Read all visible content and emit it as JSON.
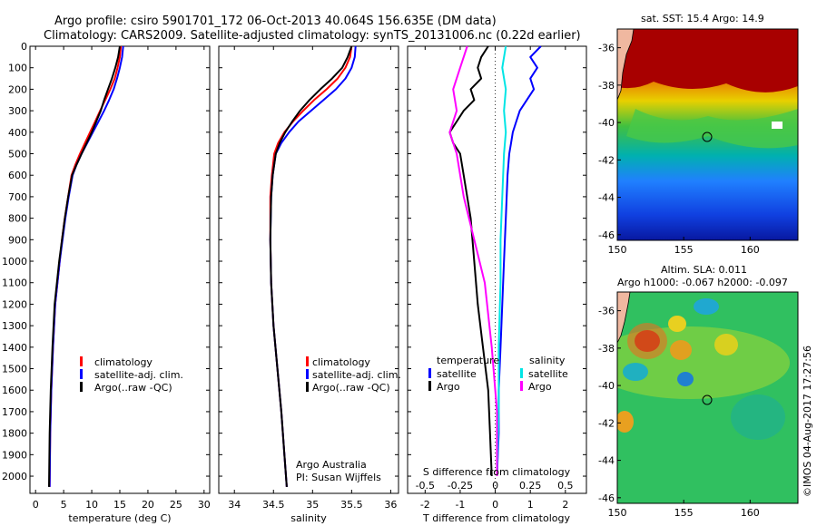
{
  "title": {
    "line1": "Argo profile: csiro 5901701_172 06-Oct-2013 40.064S 156.635E (DM data)",
    "line2": "Climatology: CARS2009. Satellite-adjusted climatology: synTS_20131006.nc (0.22d earlier)"
  },
  "colors": {
    "climatology": "#ff0000",
    "satellite": "#0000ff",
    "argo": "#000000",
    "s_satellite": "#00e5e5",
    "s_argo": "#ff00ff"
  },
  "panels": {
    "temperature": {
      "xlabel": "temperature (deg C)",
      "legend": [
        "climatology",
        "satellite-adj. clim.",
        "Argo(..raw -QC)"
      ]
    },
    "salinity": {
      "xlabel": "salinity",
      "legend": [
        "climatology",
        "satellite-adj. clim.",
        "Argo(..raw -QC)"
      ],
      "note1": "Argo Australia",
      "note2": "PI: Susan Wijffels"
    },
    "difference": {
      "xlabel": "T difference from climatology",
      "top_label": "S difference from climatology",
      "legend_t_title": "temperature",
      "legend_s_title": "salinity",
      "legend_t": [
        "satellite",
        "Argo"
      ],
      "legend_s": [
        "satellite",
        "Argo"
      ]
    },
    "sst_map": {
      "title": "sat. SST: 15.4 Argo: 14.9"
    },
    "sla_map": {
      "title1": "Altim. SLA: 0.011",
      "title2": "Argo h1000: -0.067 h2000: -0.097"
    }
  },
  "side_text": "©IMOS 04-Aug-2017 17:27:56",
  "chart_data": [
    {
      "type": "line",
      "name": "temperature profile",
      "xlabel": "temperature (deg C)",
      "xlim": [
        -1,
        31
      ],
      "ylim": [
        2080,
        0
      ],
      "xticks": [
        0,
        5,
        10,
        15,
        20,
        25,
        30
      ],
      "yticks": [
        0,
        100,
        200,
        300,
        400,
        500,
        600,
        700,
        800,
        900,
        1000,
        1100,
        1200,
        1300,
        1400,
        1500,
        1600,
        1700,
        1800,
        1900,
        2000
      ],
      "series": [
        {
          "name": "climatology",
          "x": [
            15.2,
            15.0,
            14.6,
            14.1,
            13.3,
            12.4,
            11.5,
            10.6,
            9.7,
            8.8,
            7.9,
            7.1,
            6.4,
            5.8,
            5.2,
            4.7,
            4.3,
            3.9,
            3.5,
            3.1,
            2.8,
            2.6,
            2.5
          ],
          "y": [
            0,
            50,
            100,
            150,
            200,
            250,
            300,
            350,
            400,
            450,
            500,
            550,
            600,
            700,
            800,
            900,
            1000,
            1100,
            1200,
            1400,
            1600,
            1800,
            2050
          ]
        },
        {
          "name": "satellite-adj. clim.",
          "x": [
            15.6,
            15.4,
            15.0,
            14.5,
            13.9,
            13.1,
            12.2,
            11.2,
            10.2,
            9.2,
            8.2,
            7.3,
            6.6,
            5.9,
            5.3,
            4.8,
            4.3,
            3.9,
            3.5,
            3.1,
            2.8,
            2.6,
            2.5
          ],
          "y": [
            0,
            50,
            100,
            150,
            200,
            250,
            300,
            350,
            400,
            450,
            500,
            550,
            600,
            700,
            800,
            900,
            1000,
            1100,
            1200,
            1400,
            1600,
            1800,
            2050
          ]
        },
        {
          "name": "Argo(..raw -QC)",
          "x": [
            15.0,
            14.7,
            14.2,
            13.6,
            12.9,
            12.2,
            11.6,
            10.8,
            10.0,
            9.1,
            8.2,
            7.3,
            6.5,
            5.8,
            5.2,
            4.7,
            4.2,
            3.8,
            3.4,
            3.0,
            2.7,
            2.5,
            2.4
          ],
          "y": [
            0,
            50,
            100,
            150,
            200,
            250,
            300,
            350,
            400,
            450,
            500,
            550,
            600,
            700,
            800,
            900,
            1000,
            1100,
            1200,
            1400,
            1600,
            1800,
            2050
          ]
        }
      ]
    },
    {
      "type": "line",
      "name": "salinity profile",
      "xlabel": "salinity",
      "xlim": [
        33.8,
        36.1
      ],
      "ylim": [
        2080,
        0
      ],
      "xticks": [
        34,
        34.5,
        35,
        35.5,
        36
      ],
      "series": [
        {
          "name": "climatology",
          "x": [
            35.5,
            35.48,
            35.42,
            35.32,
            35.18,
            35.02,
            34.88,
            34.75,
            34.64,
            34.56,
            34.51,
            34.48,
            34.46,
            34.46,
            34.47,
            34.5,
            34.55,
            34.6,
            34.64,
            34.67
          ],
          "y": [
            0,
            50,
            100,
            150,
            200,
            250,
            300,
            350,
            400,
            450,
            500,
            600,
            700,
            900,
            1100,
            1300,
            1500,
            1700,
            1900,
            2050
          ]
        },
        {
          "name": "satellite-adj. clim.",
          "x": [
            35.55,
            35.54,
            35.5,
            35.42,
            35.3,
            35.14,
            34.98,
            34.82,
            34.7,
            34.6,
            34.53,
            34.49,
            34.47,
            34.46,
            34.47,
            34.5,
            34.55,
            34.6,
            34.64,
            34.67
          ],
          "y": [
            0,
            50,
            100,
            150,
            200,
            250,
            300,
            350,
            400,
            450,
            500,
            600,
            700,
            900,
            1100,
            1300,
            1500,
            1700,
            1900,
            2050
          ]
        },
        {
          "name": "Argo(..raw -QC)",
          "x": [
            35.5,
            35.45,
            35.38,
            35.25,
            35.1,
            34.96,
            34.84,
            34.74,
            34.65,
            34.58,
            34.53,
            34.49,
            34.47,
            34.46,
            34.47,
            34.5,
            34.55,
            34.6,
            34.64,
            34.67
          ],
          "y": [
            0,
            50,
            100,
            150,
            200,
            250,
            300,
            350,
            400,
            450,
            500,
            600,
            700,
            900,
            1100,
            1300,
            1500,
            1700,
            1900,
            2050
          ]
        }
      ]
    },
    {
      "type": "line",
      "name": "difference from climatology",
      "xlabel": "T difference from climatology",
      "top_label": "S difference from climatology",
      "xlim": [
        -2.5,
        2.6
      ],
      "ylim": [
        2080,
        0
      ],
      "xticks": [
        -2,
        -1,
        0,
        1,
        2
      ],
      "top_ticks": [
        "-0.5",
        "-0.25",
        "0",
        "0.25",
        "0.5"
      ],
      "top_tick_values": [
        -2,
        -1,
        0,
        1,
        2
      ],
      "series": [
        {
          "name": "temperature satellite",
          "x": [
            1.3,
            1.0,
            1.2,
            1.0,
            1.1,
            0.9,
            0.7,
            0.6,
            0.5,
            0.45,
            0.4,
            0.35,
            0.3,
            0.25,
            0.2,
            0.15,
            0.1,
            0.1,
            0.05
          ],
          "y": [
            0,
            50,
            100,
            150,
            200,
            250,
            300,
            350,
            400,
            450,
            500,
            600,
            800,
            1000,
            1200,
            1400,
            1600,
            1800,
            2000
          ]
        },
        {
          "name": "temperature Argo",
          "x": [
            -0.2,
            -0.4,
            -0.5,
            -0.4,
            -0.7,
            -0.6,
            -0.9,
            -1.1,
            -1.3,
            -1.2,
            -1.0,
            -0.9,
            -0.7,
            -0.6,
            -0.5,
            -0.35,
            -0.2,
            -0.15,
            -0.1
          ],
          "y": [
            0,
            50,
            100,
            150,
            200,
            250,
            300,
            350,
            400,
            450,
            500,
            600,
            800,
            1000,
            1200,
            1400,
            1600,
            1800,
            2000
          ]
        },
        {
          "name": "salinity satellite",
          "x": [
            0.3,
            0.2,
            0.3,
            0.25,
            0.3,
            0.25,
            0.2,
            0.15,
            0.15,
            0.1,
            0.1,
            0.05
          ],
          "y": [
            0,
            100,
            200,
            300,
            400,
            500,
            700,
            900,
            1100,
            1400,
            1700,
            2000
          ]
        },
        {
          "name": "salinity Argo",
          "x": [
            -0.8,
            -1.0,
            -1.2,
            -1.1,
            -1.3,
            -1.1,
            -0.9,
            -0.6,
            -0.3,
            -0.1,
            0.05,
            0.05
          ],
          "y": [
            0,
            100,
            200,
            300,
            400,
            500,
            700,
            900,
            1100,
            1400,
            1700,
            2000
          ]
        }
      ]
    }
  ],
  "maps": {
    "yticks": [
      "-36",
      "-38",
      "-40",
      "-42",
      "-44",
      "-46"
    ],
    "xticks": [
      "150",
      "155",
      "160"
    ],
    "argo_position": {
      "lon": 156.635,
      "lat": -40.064
    }
  }
}
